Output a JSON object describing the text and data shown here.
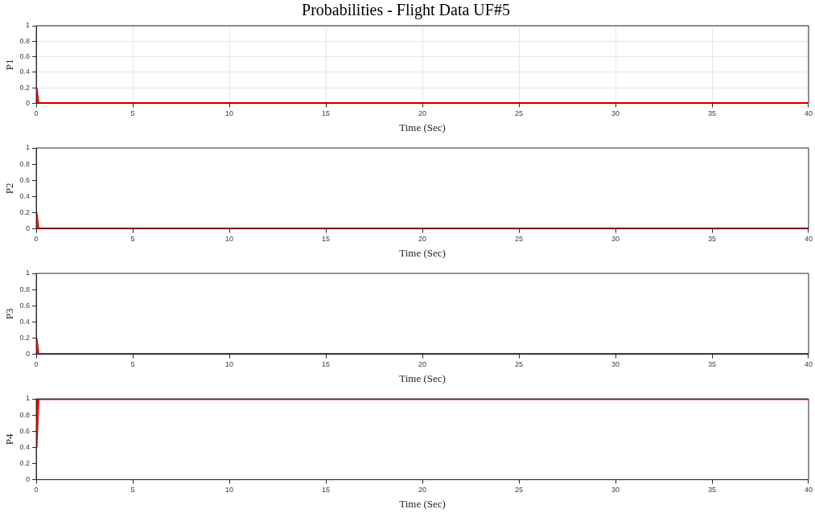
{
  "chart_data": [
    {
      "type": "line",
      "title": "Probabilities - Flight Data UF#5",
      "xlabel": "Time (Sec)",
      "ylabel": "P1",
      "x": [
        0,
        0.1,
        40
      ],
      "series": [
        {
          "color": "#ff0000",
          "values": [
            0.2,
            0,
            0
          ]
        }
      ],
      "xlim": [
        0,
        40
      ],
      "xticks": [
        0,
        5,
        10,
        15,
        20,
        25,
        30,
        35,
        40
      ],
      "ylim": [
        0,
        1
      ],
      "yticks": [
        0,
        0.2,
        0.4,
        0.6,
        0.8,
        1
      ],
      "grid": true
    },
    {
      "type": "line",
      "xlabel": "Time (Sec)",
      "ylabel": "P2",
      "x": [
        0,
        0.1,
        40
      ],
      "series": [
        {
          "color": "#ff0000",
          "values": [
            0.2,
            0,
            0
          ]
        }
      ],
      "xlim": [
        0,
        40
      ],
      "xticks": [
        0,
        5,
        10,
        15,
        20,
        25,
        30,
        35,
        40
      ],
      "ylim": [
        0,
        1
      ],
      "yticks": [
        0,
        0.2,
        0.4,
        0.6,
        0.8,
        1
      ]
    },
    {
      "type": "line",
      "xlabel": "Time (Sec)",
      "ylabel": "P3",
      "x": [
        0,
        0.1,
        40
      ],
      "series": [
        {
          "color": "#ff0000",
          "values": [
            0.2,
            0,
            0
          ]
        }
      ],
      "xlim": [
        0,
        40
      ],
      "xticks": [
        0,
        5,
        10,
        15,
        20,
        25,
        30,
        35,
        40
      ],
      "ylim": [
        0,
        1
      ],
      "yticks": [
        0,
        0.2,
        0.4,
        0.6,
        0.8,
        1
      ]
    },
    {
      "type": "line",
      "xlabel": "Time (Sec)",
      "ylabel": "P4",
      "x": [
        0,
        0.1,
        40
      ],
      "series": [
        {
          "color": "#ff0000",
          "values": [
            0.4,
            1,
            1
          ]
        }
      ],
      "xlim": [
        0,
        40
      ],
      "xticks": [
        0,
        5,
        10,
        15,
        20,
        25,
        30,
        35,
        40
      ],
      "ylim": [
        0,
        1
      ],
      "yticks": [
        0,
        0.2,
        0.4,
        0.6,
        0.8,
        1
      ]
    }
  ]
}
